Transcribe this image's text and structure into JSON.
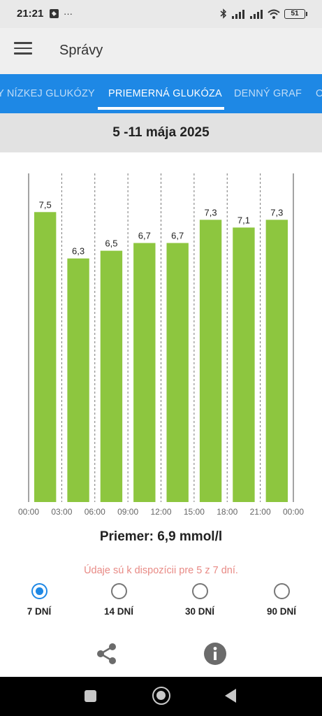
{
  "status_bar": {
    "time": "21:21",
    "left_icons": [
      "notification-icon",
      "more-dots-icon"
    ],
    "more": "···",
    "battery": "51"
  },
  "app_bar": {
    "title": "Správy"
  },
  "tabs": [
    {
      "label": "Y NÍZKEJ GLUKÓZY",
      "active": false
    },
    {
      "label": "PRIEMERNÁ GLUKÓZA",
      "active": true
    },
    {
      "label": "DENNÝ GRAF",
      "active": false
    },
    {
      "label": "O",
      "active": false
    }
  ],
  "date_range": "5 -11 mája 2025",
  "chart_data": {
    "type": "bar",
    "categories": [
      "00:00-03:00",
      "03:00-06:00",
      "06:00-09:00",
      "09:00-12:00",
      "12:00-15:00",
      "15:00-18:00",
      "18:00-21:00",
      "21:00-00:00"
    ],
    "values": [
      7.5,
      6.3,
      6.5,
      6.7,
      6.7,
      7.3,
      7.1,
      7.3
    ],
    "value_labels": [
      "7,5",
      "6,3",
      "6,5",
      "6,7",
      "6,7",
      "7,3",
      "7,1",
      "7,3"
    ],
    "x_ticks": [
      "00:00",
      "03:00",
      "06:00",
      "09:00",
      "12:00",
      "15:00",
      "18:00",
      "21:00",
      "00:00"
    ],
    "ylim": [
      0,
      8.5
    ],
    "bar_color": "#8dc63f",
    "grid": "dashed vertical separators",
    "title": "",
    "xlabel": "",
    "ylabel": ""
  },
  "average": "Priemer: 6,9 mmol/l",
  "availability_note": "Údaje sú k dispozícii pre 5 z 7 dní.",
  "ranges": [
    {
      "label": "7 DNÍ",
      "selected": true
    },
    {
      "label": "14 DNÍ",
      "selected": false
    },
    {
      "label": "30 DNÍ",
      "selected": false
    },
    {
      "label": "90 DNÍ",
      "selected": false
    }
  ],
  "actions": {
    "share_icon": "share-icon",
    "info_icon": "info-icon"
  },
  "colors": {
    "accent": "#1e88e5",
    "bar": "#8dc63f",
    "note": "#e88a85"
  }
}
